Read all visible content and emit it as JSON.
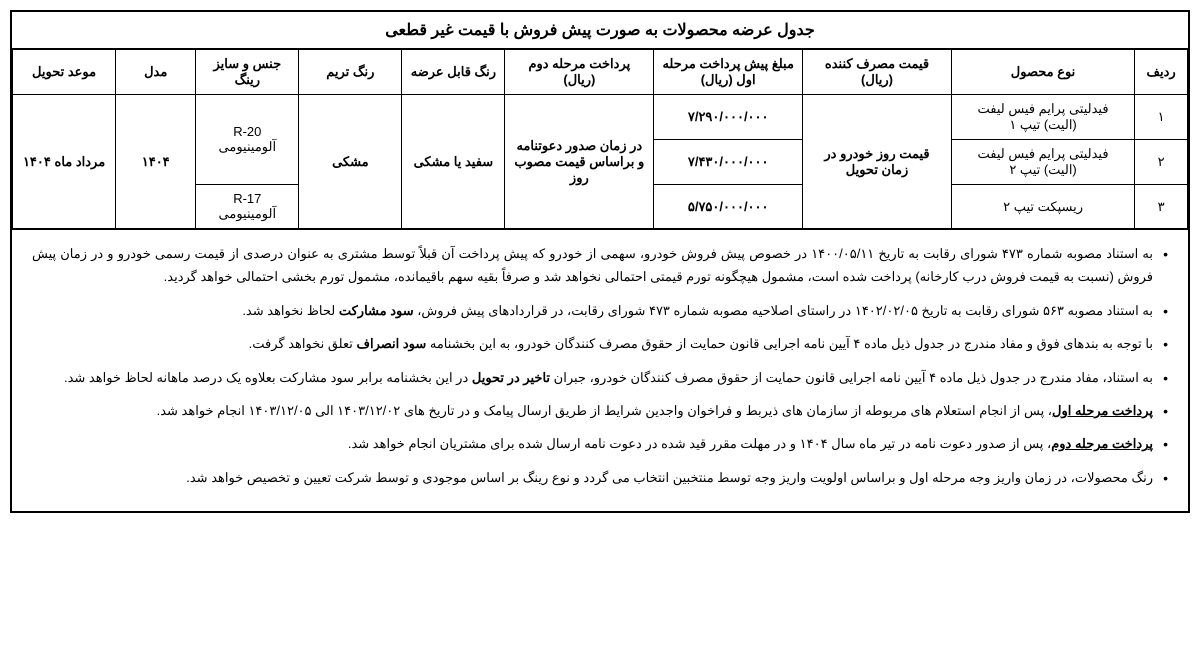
{
  "title": "جدول عرضه محصولات به صورت پیش فروش با قیمت غیر قطعی",
  "headers": {
    "radif": "ردیف",
    "product": "نوع محصول",
    "consumer_price": "قیمت مصرف کننده (ریال)",
    "prepay_phase1": "مبلغ پیش پرداخت مرحله اول (ریال)",
    "pay_phase2": "پرداخت مرحله دوم (ریال)",
    "color": "رنگ قابل عرضه",
    "trim_color": "رنگ تریم",
    "ring": "جنس و سایز رینگ",
    "model": "مدل",
    "delivery": "موعد تحویل"
  },
  "rows": [
    {
      "radif": "۱",
      "product": "فیدلیتی پرایم فیس لیفت (الیت) تیپ ۱",
      "prepay": "۷/۲۹۰/۰۰۰/۰۰۰"
    },
    {
      "radif": "۲",
      "product": "فیدلیتی پرایم فیس لیفت (الیت) تیپ ۲",
      "prepay": "۷/۴۳۰/۰۰۰/۰۰۰"
    },
    {
      "radif": "۳",
      "product": "ریسپکت تیپ ۲",
      "prepay": "۵/۷۵۰/۰۰۰/۰۰۰"
    }
  ],
  "merged": {
    "consumer_price": "قیمت روز خودرو در زمان تحویل",
    "pay_phase2": "در زمان صدور دعوتنامه و براساس قیمت مصوب روز",
    "color": "سفید یا مشکی",
    "trim_color": "مشکی",
    "ring_top": "R-20 آلومینیومی",
    "ring_bottom": "R-17 آلومینیومی",
    "model": "۱۴۰۴",
    "delivery": "مرداد ماه ۱۴۰۴"
  },
  "notes": {
    "n1": "به استناد مصوبه شماره ۴۷۳ شورای رقابت به تاریخ ۱۴۰۰/۰۵/۱۱ در خصوص پیش فروش خودرو، سهمی از خودرو که پیش پرداخت آن قبلاً توسط مشتری به عنوان درصدی از قیمت رسمی خودرو و در زمان پیش فروش (نسبت به قیمت فروش درب کارخانه) پرداخت شده است، مشمول هیچگونه تورم قیمتی احتمالی نخواهد شد و صرفاً بقیه سهم باقیمانده، مشمول تورم بخشی احتمالی خواهد گردید.",
    "n2_pre": "به استناد مصوبه ۵۶۳ شورای رقابت به تاریخ ۱۴۰۲/۰۲/۰۵ در راستای اصلاحیه مصوبه شماره ۴۷۳ شورای رقابت، در قراردادهای پیش فروش، ",
    "n2_bold": "سود مشارکت",
    "n2_post": " لحاظ نخواهد شد.",
    "n3_pre": "با توجه به بندهای فوق و مفاد مندرج در جدول ذیل ماده ۴ آیین نامه اجرایی قانون حمایت از حقوق مصرف کنندگان خودرو، به این بخشنامه ",
    "n3_bold": "سود انصراف",
    "n3_post": " تعلق نخواهد گرفت.",
    "n4_pre": "به استناد، مفاد مندرج در جدول ذیل ماده ۴ آیین نامه اجرایی قانون حمایت از حقوق مصرف کنندگان خودرو، جبران ",
    "n4_bold": "تاخیر در تحویل",
    "n4_post": " در این بخشنامه برابر سود مشارکت بعلاوه یک درصد ماهانه لحاظ خواهد شد.",
    "n5_label": "پرداخت مرحله اول",
    "n5_text": "، پس از انجام استعلام های مربوطه از سازمان های ذیربط و فراخوان واجدین شرایط از طریق ارسال پیامک و در تاریخ های ۱۴۰۳/۱۲/۰۲ الی ۱۴۰۳/۱۲/۰۵ انجام خواهد شد.",
    "n6_label": "پرداخت مرحله دوم",
    "n6_text": "، پس از صدور دعوت نامه در  تیر ماه سال ۱۴۰۴ و در مهلت مقرر قید شده در دعوت نامه ارسال شده برای مشتریان انجام خواهد شد.",
    "n7": "رنگ محصولات، در زمان واریز وجه مرحله اول و براساس اولویت واریز وجه توسط منتخبین انتخاب می گردد و نوع رینگ بر اساس موجودی و توسط شرکت تعیین و تخصیص خواهد شد."
  }
}
